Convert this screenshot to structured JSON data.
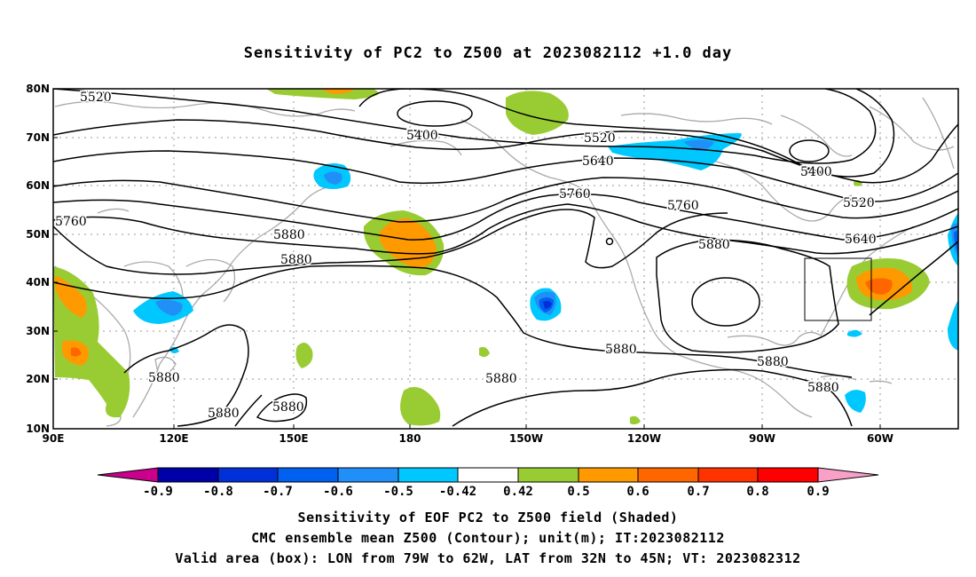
{
  "title": "Sensitivity of PC2 to Z500 at 2023082112 +1.0 day",
  "map": {
    "lat_labels": [
      "80N",
      "70N",
      "60N",
      "50N",
      "40N",
      "30N",
      "20N",
      "10N"
    ],
    "lon_labels": [
      "90E",
      "120E",
      "150E",
      "180",
      "150W",
      "120W",
      "90W",
      "60W"
    ],
    "contour_labels": [
      "5520",
      "5400",
      "5520",
      "5640",
      "5760",
      "5760",
      "5760",
      "5880",
      "5880",
      "5400",
      "5520",
      "5640",
      "5880",
      "5880",
      "5880",
      "5880",
      "5880",
      "5880"
    ],
    "valid_area_box": {
      "lon_min": -79,
      "lon_max": -62,
      "lat_min": 32,
      "lat_max": 45
    }
  },
  "colorbar": {
    "labels": [
      "-0.9",
      "-0.8",
      "-0.7",
      "-0.6",
      "-0.5",
      "-0.42",
      "0.42",
      "0.5",
      "0.6",
      "0.7",
      "0.8",
      "0.9"
    ],
    "colors": [
      "#0000a8",
      "#0030d8",
      "#0060f0",
      "#2090f8",
      "#00c8ff",
      "#ffffff",
      "#99cc33",
      "#ff9900",
      "#ff6600",
      "#ff3300",
      "#ff0000"
    ],
    "low_end_color": "#c8008c",
    "high_end_color": "#f8a0c8"
  },
  "footer": {
    "line1": "Sensitivity of EOF PC2 to Z500 field (Shaded)",
    "line2": "CMC ensemble mean Z500 (Contour); unit(m); IT:2023082112",
    "line3": "Valid area (box): LON from 79W to 62W, LAT from 32N to 45N; VT: 2023082312"
  }
}
